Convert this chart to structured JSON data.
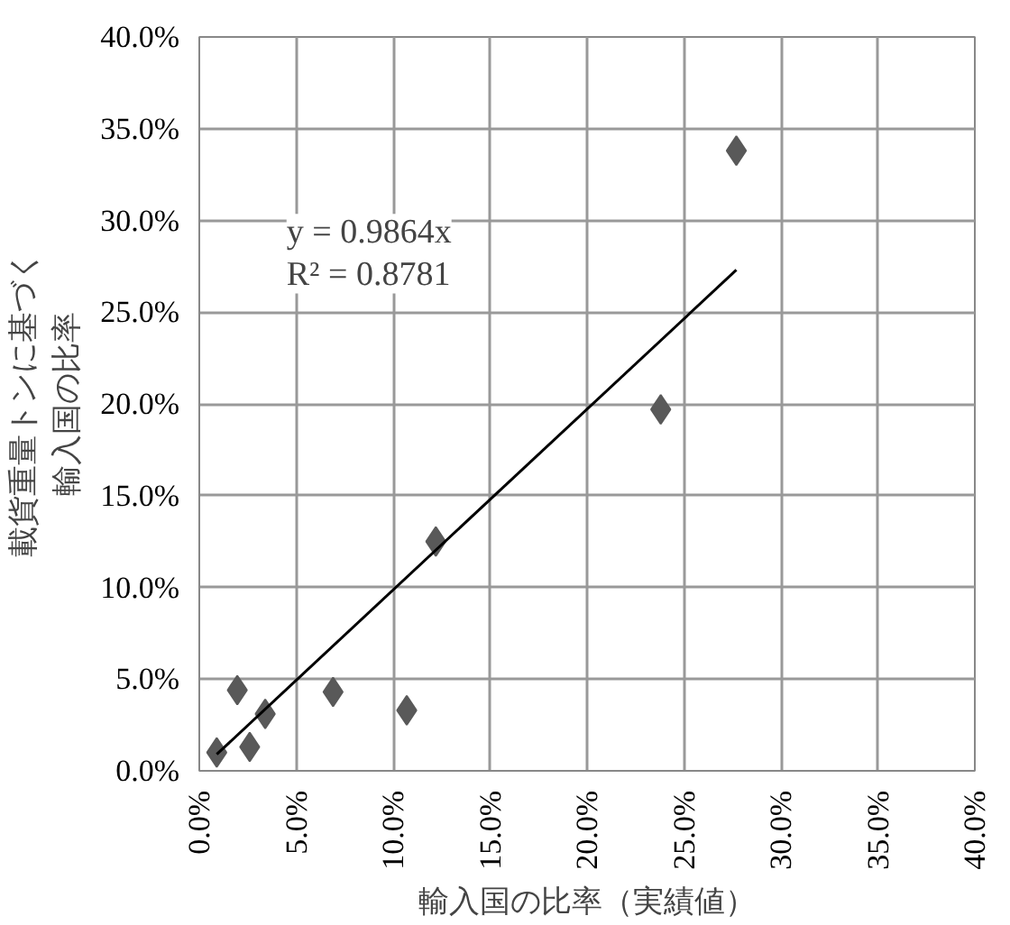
{
  "chart_data": {
    "type": "scatter",
    "xlabel": "輸入国の比率（実績値）",
    "ylabel": "載貨重量トンに基づく輸入国の比率",
    "x": [
      27.7,
      23.8,
      12.2,
      1.96,
      3.4,
      6.9,
      10.7,
      2.6,
      0.9
    ],
    "series": [
      {
        "color": "#595959",
        "values": [
          33.8,
          19.7,
          12.5,
          4.4,
          3.1,
          4.3,
          3.3,
          1.3,
          1.0
        ],
        "marker": "diamond"
      },
      {
        "type": "line",
        "color": "#000000",
        "x": [
          0.9,
          27.7
        ],
        "values": [
          0.9,
          27.3
        ]
      }
    ],
    "grid": true,
    "xlim": [
      0,
      40
    ],
    "ylim": [
      0,
      40
    ],
    "xticks": [
      {
        "value": 0,
        "label": "0.0%"
      },
      {
        "value": 5,
        "label": "5.0%"
      },
      {
        "value": 10,
        "label": "10.0%"
      },
      {
        "value": 15,
        "label": "15.0%"
      },
      {
        "value": 20,
        "label": "20.0%"
      },
      {
        "value": 25,
        "label": "25.0%"
      },
      {
        "value": 30,
        "label": "30.0%"
      },
      {
        "value": 35,
        "label": "35.0%"
      },
      {
        "value": 40,
        "label": "40.0%"
      }
    ],
    "yticks": [
      {
        "value": 0,
        "label": "0.0%"
      },
      {
        "value": 5,
        "label": "5.0%"
      },
      {
        "value": 10,
        "label": "10.0%"
      },
      {
        "value": 15,
        "label": "15.0%"
      },
      {
        "value": 20,
        "label": "20.0%"
      },
      {
        "value": 25,
        "label": "25.0%"
      },
      {
        "value": 30,
        "label": "30.0%"
      },
      {
        "value": 35,
        "label": "35.0%"
      },
      {
        "value": 40,
        "label": "40.0%"
      }
    ],
    "annotations": [
      "y = 0.9864x\nR² = 0.8781"
    ]
  }
}
